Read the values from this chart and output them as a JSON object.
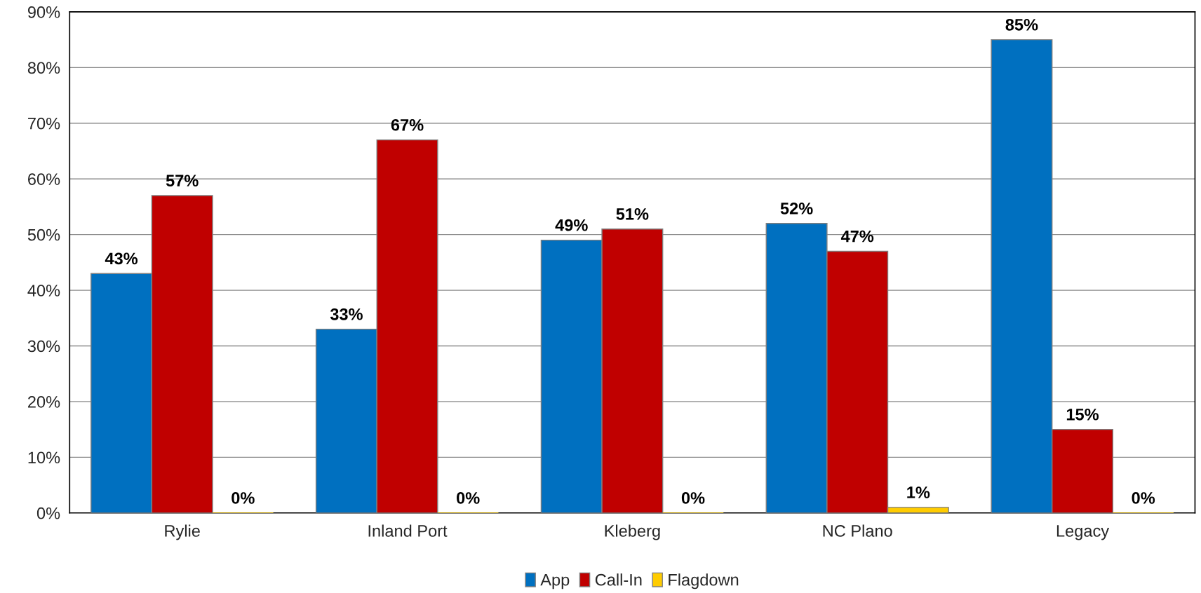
{
  "chart_data": {
    "type": "bar",
    "categories": [
      "Rylie",
      "Inland Port",
      "Kleberg",
      "NC Plano",
      "Legacy"
    ],
    "series": [
      {
        "name": "App",
        "color": "#0070c0",
        "values": [
          43,
          33,
          49,
          52,
          85
        ],
        "value_labels": [
          "43%",
          "33%",
          "49%",
          "52%",
          "85%"
        ]
      },
      {
        "name": "Call-In",
        "color": "#c00000",
        "values": [
          57,
          67,
          51,
          47,
          15
        ],
        "value_labels": [
          "57%",
          "67%",
          "51%",
          "47%",
          "15%"
        ]
      },
      {
        "name": "Flagdown",
        "color": "#ffcc00",
        "values": [
          0,
          0,
          0,
          1,
          0
        ],
        "value_labels": [
          "0%",
          "0%",
          "0%",
          "1%",
          "0%"
        ]
      }
    ],
    "ylim": [
      0,
      90
    ],
    "yticks": [
      {
        "value": 0,
        "label": "0%"
      },
      {
        "value": 10,
        "label": "10%"
      },
      {
        "value": 20,
        "label": "20%"
      },
      {
        "value": 30,
        "label": "30%"
      },
      {
        "value": 40,
        "label": "40%"
      },
      {
        "value": 50,
        "label": "50%"
      },
      {
        "value": 60,
        "label": "60%"
      },
      {
        "value": 70,
        "label": "70%"
      },
      {
        "value": 80,
        "label": "80%"
      },
      {
        "value": 90,
        "label": "90%"
      }
    ],
    "grid": "y",
    "legend": "bottom"
  }
}
